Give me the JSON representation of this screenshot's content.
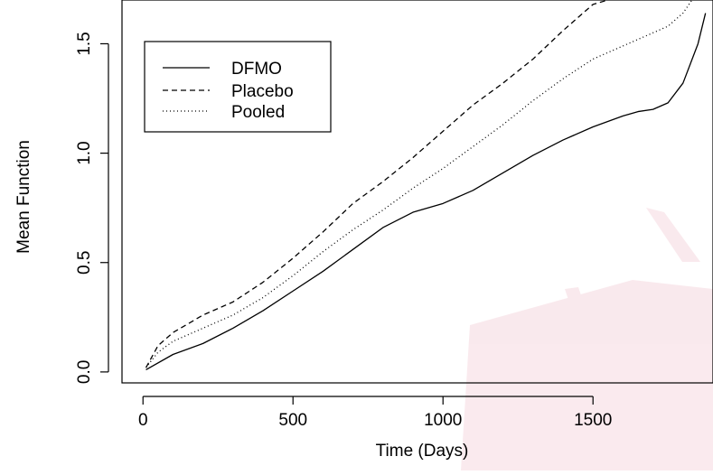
{
  "chart_data": {
    "type": "line",
    "xlabel": "Time (Days)",
    "ylabel": "Mean Function",
    "xlim": [
      -70,
      1900
    ],
    "ylim": [
      -0.05,
      1.7
    ],
    "xticks": [
      0,
      500,
      1000,
      1500
    ],
    "xtick_labels": [
      "0",
      "500",
      "1000",
      "1500"
    ],
    "yticks": [
      0.0,
      0.5,
      1.0,
      1.5
    ],
    "ytick_labels": [
      "0.0",
      "0.5",
      "1.0",
      "1.5"
    ],
    "grid": false,
    "legend_position": "top-left",
    "series": [
      {
        "name": "DFMO",
        "line_style": "solid",
        "x": [
          10,
          100,
          200,
          300,
          400,
          500,
          600,
          700,
          800,
          900,
          1000,
          1100,
          1200,
          1300,
          1400,
          1500,
          1600,
          1650,
          1700,
          1750,
          1800,
          1850,
          1875
        ],
        "y": [
          0.01,
          0.08,
          0.13,
          0.2,
          0.28,
          0.37,
          0.46,
          0.56,
          0.66,
          0.73,
          0.77,
          0.83,
          0.91,
          0.99,
          1.06,
          1.12,
          1.17,
          1.19,
          1.2,
          1.23,
          1.32,
          1.5,
          1.64
        ]
      },
      {
        "name": "Placebo",
        "line_style": "dashed",
        "x": [
          10,
          50,
          100,
          200,
          300,
          400,
          500,
          600,
          700,
          800,
          900,
          1000,
          1100,
          1200,
          1300,
          1400,
          1500,
          1550
        ],
        "y": [
          0.02,
          0.12,
          0.18,
          0.26,
          0.32,
          0.41,
          0.52,
          0.64,
          0.77,
          0.87,
          0.98,
          1.1,
          1.22,
          1.32,
          1.43,
          1.56,
          1.68,
          1.7
        ]
      },
      {
        "name": "Pooled",
        "line_style": "dotted",
        "x": [
          10,
          50,
          100,
          200,
          300,
          400,
          500,
          600,
          700,
          800,
          900,
          1000,
          1100,
          1200,
          1300,
          1400,
          1500,
          1600,
          1700,
          1750,
          1800,
          1830
        ],
        "y": [
          0.02,
          0.09,
          0.14,
          0.2,
          0.26,
          0.34,
          0.44,
          0.55,
          0.65,
          0.74,
          0.84,
          0.93,
          1.03,
          1.13,
          1.24,
          1.34,
          1.43,
          1.49,
          1.55,
          1.58,
          1.64,
          1.7
        ]
      }
    ]
  }
}
